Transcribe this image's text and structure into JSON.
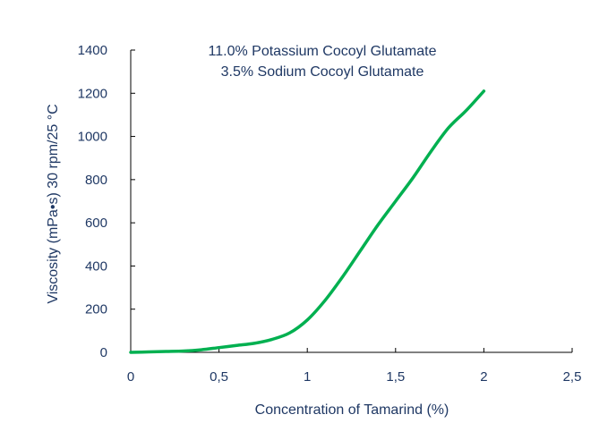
{
  "chart_data": {
    "type": "line",
    "title": "",
    "annotation_lines": [
      "11.0% Potassium Cocoyl Glutamate",
      "3.5% Sodium Cocoyl Glutamate"
    ],
    "xlabel": "Concentration of Tamarind (%)",
    "ylabel": "Viscosity (mPa•s) 30 rpm/25 °C",
    "xlim": [
      0,
      2.5
    ],
    "ylim": [
      0,
      1400
    ],
    "x_ticks": [
      0,
      0.5,
      1,
      1.5,
      2,
      2.5
    ],
    "x_tick_labels": [
      "0",
      "0,5",
      "1",
      "1,5",
      "2",
      "2,5"
    ],
    "y_ticks": [
      0,
      200,
      400,
      600,
      800,
      1000,
      1200,
      1400
    ],
    "y_tick_labels": [
      "0",
      "200",
      "400",
      "600",
      "800",
      "1000",
      "1200",
      "1400"
    ],
    "grid": false,
    "series": [
      {
        "color": "#00b050",
        "x": [
          0,
          0.1,
          0.2,
          0.3,
          0.4,
          0.5,
          0.6,
          0.7,
          0.8,
          0.9,
          1.0,
          1.1,
          1.2,
          1.3,
          1.4,
          1.5,
          1.6,
          1.7,
          1.8,
          1.9,
          2.0
        ],
        "y": [
          0,
          2,
          4,
          6,
          12,
          22,
          32,
          42,
          60,
          90,
          150,
          240,
          350,
          470,
          590,
          700,
          810,
          930,
          1040,
          1120,
          1210
        ]
      }
    ]
  }
}
